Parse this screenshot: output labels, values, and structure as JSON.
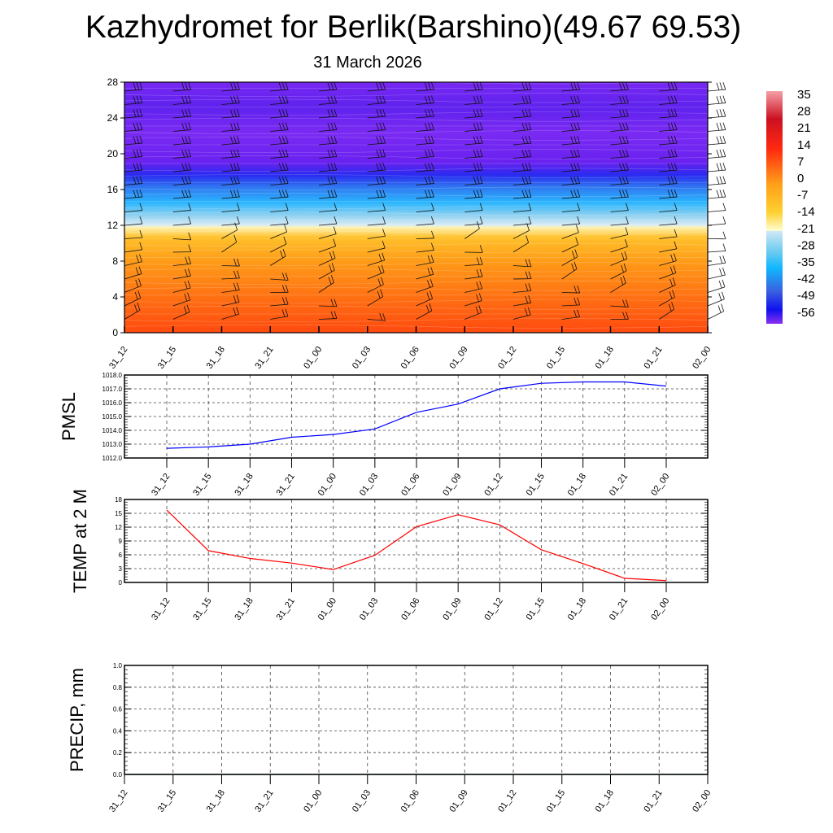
{
  "title": "Kazhydromet for Berlik(Barshino)(49.67 69.53)",
  "subtitle": "31 March 2026",
  "chart_data": [
    {
      "type": "heatmap",
      "name": "vertical-cross-section",
      "categories": [
        "31_12",
        "31_15",
        "31_18",
        "31_21",
        "01_00",
        "01_03",
        "01_06",
        "01_09",
        "01_12",
        "01_15",
        "01_18",
        "01_21",
        "02_00"
      ],
      "ylim": [
        0,
        28
      ],
      "yticks": [
        "0",
        "4",
        "8",
        "12",
        "16",
        "20",
        "24",
        "28"
      ],
      "colorbar_labels": [
        "35",
        "28",
        "21",
        "14",
        "7",
        "0",
        "-7",
        "-14",
        "-21",
        "-28",
        "-35",
        "-42",
        "-49",
        "-56"
      ],
      "colorbar_range": [
        -63,
        42
      ],
      "temperature_profile": [
        {
          "level": 0,
          "value": 21
        },
        {
          "level": 4,
          "value": 16
        },
        {
          "level": 8,
          "value": 7
        },
        {
          "level": 11.8,
          "value": -12
        },
        {
          "level": 12.5,
          "value": -15
        },
        {
          "level": 14,
          "value": -25
        },
        {
          "level": 16,
          "value": -40
        },
        {
          "level": 17.8,
          "value": -56
        },
        {
          "level": 19,
          "value": -62
        },
        {
          "level": 28,
          "value": -60
        }
      ]
    },
    {
      "type": "line",
      "name": "pmsl",
      "ylabel": "PMSL",
      "categories": [
        "31_12",
        "31_15",
        "31_18",
        "31_21",
        "01_00",
        "01_03",
        "01_06",
        "01_09",
        "01_12",
        "01_15",
        "01_18",
        "01_21",
        "02_00"
      ],
      "values": [
        1012.7,
        1012.8,
        1013.0,
        1013.5,
        1013.7,
        1014.1,
        1015.3,
        1015.9,
        1017.0,
        1017.4,
        1017.5,
        1017.5,
        1017.2
      ],
      "ylim": [
        1012,
        1018
      ],
      "yticks": [
        "1012.0",
        "1013.0",
        "1014.0",
        "1015.0",
        "1016.0",
        "1017.0",
        "1018.0"
      ],
      "color": "#0000ff",
      "grid": true
    },
    {
      "type": "line",
      "name": "temp-2m",
      "ylabel": "TEMP at 2 M",
      "categories": [
        "31_12",
        "31_15",
        "31_18",
        "31_21",
        "01_00",
        "01_03",
        "01_06",
        "01_09",
        "01_12",
        "01_15",
        "01_18",
        "01_21",
        "02_00"
      ],
      "values": [
        15.7,
        6.9,
        5.2,
        4.2,
        2.8,
        5.9,
        12.1,
        14.7,
        12.5,
        7.1,
        4.1,
        0.9,
        0.4
      ],
      "ylim": [
        0,
        18
      ],
      "yticks": [
        "0",
        "3",
        "6",
        "9",
        "12",
        "15",
        "18"
      ],
      "color": "#ff0000",
      "grid": true
    },
    {
      "type": "line",
      "name": "precip",
      "ylabel": "PRECIP, mm",
      "categories": [
        "31_12",
        "31_15",
        "31_18",
        "31_21",
        "01_00",
        "01_03",
        "01_06",
        "01_09",
        "01_12",
        "01_15",
        "01_18",
        "01_21",
        "02_00"
      ],
      "values": [
        0,
        0,
        0,
        0,
        0,
        0,
        0,
        0,
        0,
        0,
        0,
        0,
        0
      ],
      "ylim": [
        0,
        1
      ],
      "yticks": [
        "0.0",
        "0.2",
        "0.4",
        "0.6",
        "0.8",
        "1.0"
      ],
      "color": "#006400",
      "grid": true
    }
  ]
}
